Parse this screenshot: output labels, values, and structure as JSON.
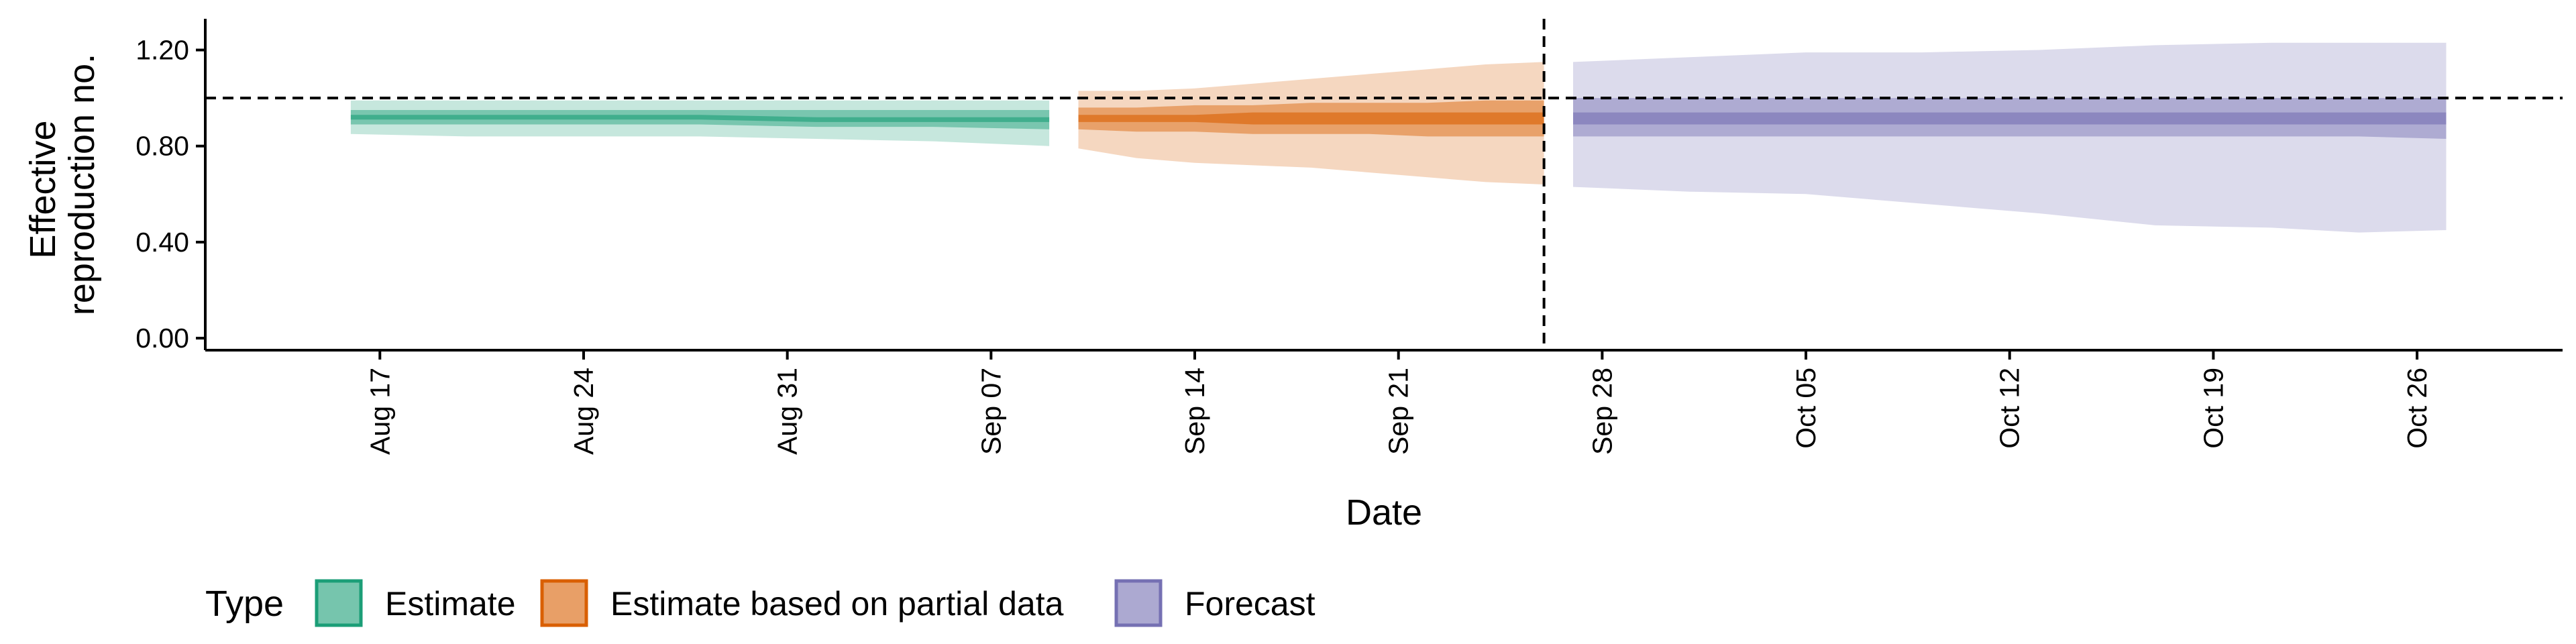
{
  "chart_data": {
    "type": "area",
    "title": "",
    "xlabel": "Date",
    "ylabel": [
      "Effective",
      "reproduction no."
    ],
    "ylim": [
      -0.05,
      1.33
    ],
    "yticks": [
      0.0,
      0.4,
      0.8,
      1.2
    ],
    "ytick_labels": [
      "0.00",
      "0.40",
      "0.80",
      "1.20"
    ],
    "xlim": [
      "2020-08-11",
      "2020-10-31"
    ],
    "xticks": [
      "2020-08-17",
      "2020-08-24",
      "2020-08-31",
      "2020-09-07",
      "2020-09-14",
      "2020-09-21",
      "2020-09-28",
      "2020-10-05",
      "2020-10-12",
      "2020-10-19",
      "2020-10-26"
    ],
    "xtick_labels": [
      "Aug 17",
      "Aug 24",
      "Aug 31",
      "Sep 07",
      "Sep 14",
      "Sep 21",
      "Sep 28",
      "Oct 05",
      "Oct 12",
      "Oct 19",
      "Oct 26"
    ],
    "reference_hline": 1.0,
    "reference_vline": "2020-09-26",
    "grid": false,
    "legend": {
      "title": "Type",
      "placement": "bottom-left",
      "entries": [
        "Estimate",
        "Estimate based on partial data",
        "Forecast"
      ]
    },
    "series": [
      {
        "name": "Estimate",
        "color": "#1b9e77",
        "x": [
          "2020-08-16",
          "2020-08-20",
          "2020-08-24",
          "2020-08-28",
          "2020-09-01",
          "2020-09-05",
          "2020-09-09"
        ],
        "lower_90": [
          0.85,
          0.84,
          0.84,
          0.84,
          0.83,
          0.82,
          0.8
        ],
        "lower_50": [
          0.89,
          0.89,
          0.89,
          0.89,
          0.88,
          0.88,
          0.87
        ],
        "lower_20": [
          0.91,
          0.91,
          0.91,
          0.91,
          0.9,
          0.9,
          0.9
        ],
        "upper_20": [
          0.93,
          0.93,
          0.93,
          0.93,
          0.92,
          0.92,
          0.92
        ],
        "upper_50": [
          0.95,
          0.95,
          0.95,
          0.95,
          0.95,
          0.95,
          0.95
        ],
        "upper_90": [
          0.99,
          0.99,
          0.99,
          0.99,
          0.99,
          0.99,
          0.99
        ]
      },
      {
        "name": "Estimate based on partial data",
        "color": "#d95f02",
        "x": [
          "2020-09-10",
          "2020-09-12",
          "2020-09-14",
          "2020-09-16",
          "2020-09-18",
          "2020-09-20",
          "2020-09-22",
          "2020-09-24",
          "2020-09-26"
        ],
        "lower_90": [
          0.79,
          0.75,
          0.73,
          0.72,
          0.71,
          0.69,
          0.67,
          0.65,
          0.64
        ],
        "lower_50": [
          0.87,
          0.86,
          0.86,
          0.85,
          0.85,
          0.85,
          0.84,
          0.84,
          0.84
        ],
        "lower_20": [
          0.9,
          0.9,
          0.9,
          0.89,
          0.89,
          0.89,
          0.89,
          0.89,
          0.89
        ],
        "upper_20": [
          0.93,
          0.93,
          0.93,
          0.94,
          0.94,
          0.94,
          0.94,
          0.94,
          0.94
        ],
        "upper_50": [
          0.96,
          0.96,
          0.97,
          0.97,
          0.98,
          0.98,
          0.98,
          0.99,
          0.99
        ],
        "upper_90": [
          1.03,
          1.03,
          1.04,
          1.06,
          1.08,
          1.1,
          1.12,
          1.14,
          1.15
        ]
      },
      {
        "name": "Forecast",
        "color": "#7570b3",
        "x": [
          "2020-09-27",
          "2020-10-01",
          "2020-10-05",
          "2020-10-09",
          "2020-10-13",
          "2020-10-17",
          "2020-10-21",
          "2020-10-24",
          "2020-10-27"
        ],
        "lower_90": [
          0.63,
          0.61,
          0.6,
          0.56,
          0.52,
          0.47,
          0.46,
          0.44,
          0.45
        ],
        "lower_50": [
          0.84,
          0.84,
          0.84,
          0.84,
          0.84,
          0.84,
          0.84,
          0.84,
          0.83
        ],
        "lower_20": [
          0.89,
          0.89,
          0.89,
          0.89,
          0.89,
          0.89,
          0.89,
          0.89,
          0.89
        ],
        "upper_20": [
          0.94,
          0.94,
          0.94,
          0.94,
          0.94,
          0.94,
          0.94,
          0.94,
          0.94
        ],
        "upper_50": [
          1.0,
          1.0,
          1.0,
          1.0,
          1.0,
          1.0,
          1.0,
          1.0,
          1.0
        ],
        "upper_90": [
          1.15,
          1.17,
          1.19,
          1.19,
          1.2,
          1.22,
          1.23,
          1.23,
          1.23
        ]
      }
    ]
  }
}
